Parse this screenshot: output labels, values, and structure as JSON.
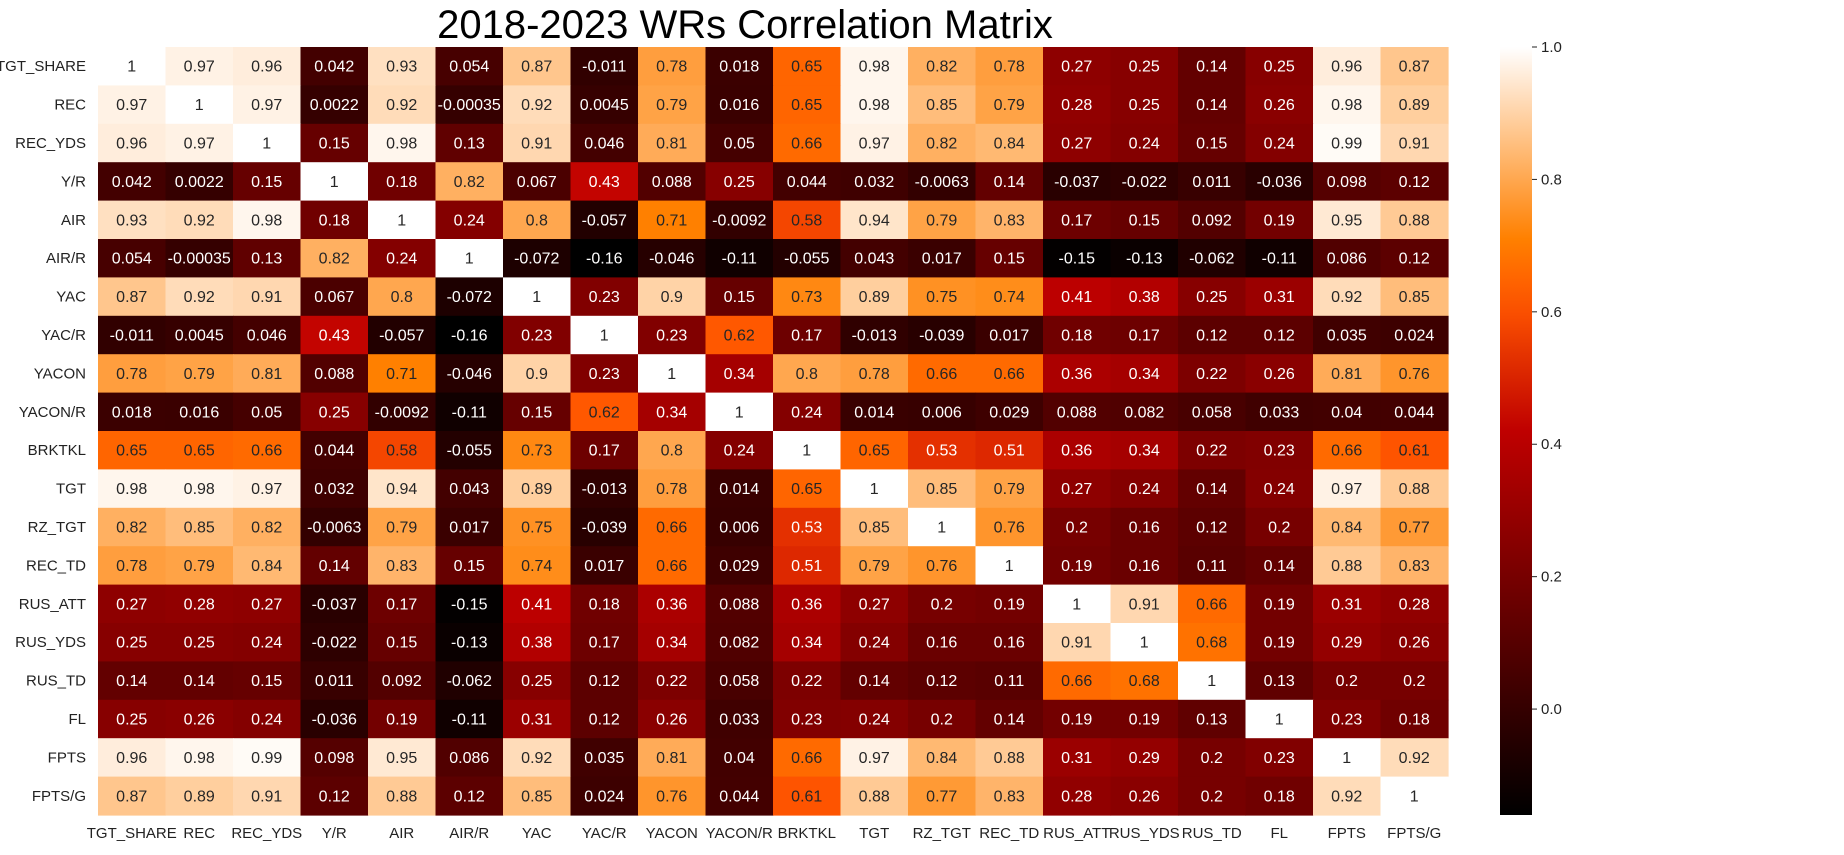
{
  "chart_data": {
    "type": "heatmap",
    "title": "2018-2023 WRs Correlation Matrix",
    "labels": [
      "TGT_SHARE",
      "REC",
      "REC_YDS",
      "Y/R",
      "AIR",
      "AIR/R",
      "YAC",
      "YAC/R",
      "YACON",
      "YACON/R",
      "BRKTKL",
      "TGT",
      "RZ_TGT",
      "REC_TD",
      "RUS_ATT",
      "RUS_YDS",
      "RUS_TD",
      "FL",
      "FPTS",
      "FPTS/G"
    ],
    "matrix": [
      [
        "1",
        "0.97",
        "0.96",
        "0.042",
        "0.93",
        "0.054",
        "0.87",
        "-0.011",
        "0.78",
        "0.018",
        "0.65",
        "0.98",
        "0.82",
        "0.78",
        "0.27",
        "0.25",
        "0.14",
        "0.25",
        "0.96",
        "0.87"
      ],
      [
        "0.97",
        "1",
        "0.97",
        "0.0022",
        "0.92",
        "-0.00035",
        "0.92",
        "0.0045",
        "0.79",
        "0.016",
        "0.65",
        "0.98",
        "0.85",
        "0.79",
        "0.28",
        "0.25",
        "0.14",
        "0.26",
        "0.98",
        "0.89"
      ],
      [
        "0.96",
        "0.97",
        "1",
        "0.15",
        "0.98",
        "0.13",
        "0.91",
        "0.046",
        "0.81",
        "0.05",
        "0.66",
        "0.97",
        "0.82",
        "0.84",
        "0.27",
        "0.24",
        "0.15",
        "0.24",
        "0.99",
        "0.91"
      ],
      [
        "0.042",
        "0.0022",
        "0.15",
        "1",
        "0.18",
        "0.82",
        "0.067",
        "0.43",
        "0.088",
        "0.25",
        "0.044",
        "0.032",
        "-0.0063",
        "0.14",
        "-0.037",
        "-0.022",
        "0.011",
        "-0.036",
        "0.098",
        "0.12"
      ],
      [
        "0.93",
        "0.92",
        "0.98",
        "0.18",
        "1",
        "0.24",
        "0.8",
        "-0.057",
        "0.71",
        "-0.0092",
        "0.58",
        "0.94",
        "0.79",
        "0.83",
        "0.17",
        "0.15",
        "0.092",
        "0.19",
        "0.95",
        "0.88"
      ],
      [
        "0.054",
        "-0.00035",
        "0.13",
        "0.82",
        "0.24",
        "1",
        "-0.072",
        "-0.16",
        "-0.046",
        "-0.11",
        "-0.055",
        "0.043",
        "0.017",
        "0.15",
        "-0.15",
        "-0.13",
        "-0.062",
        "-0.11",
        "0.086",
        "0.12"
      ],
      [
        "0.87",
        "0.92",
        "0.91",
        "0.067",
        "0.8",
        "-0.072",
        "1",
        "0.23",
        "0.9",
        "0.15",
        "0.73",
        "0.89",
        "0.75",
        "0.74",
        "0.41",
        "0.38",
        "0.25",
        "0.31",
        "0.92",
        "0.85"
      ],
      [
        "-0.011",
        "0.0045",
        "0.046",
        "0.43",
        "-0.057",
        "-0.16",
        "0.23",
        "1",
        "0.23",
        "0.62",
        "0.17",
        "-0.013",
        "-0.039",
        "0.017",
        "0.18",
        "0.17",
        "0.12",
        "0.12",
        "0.035",
        "0.024"
      ],
      [
        "0.78",
        "0.79",
        "0.81",
        "0.088",
        "0.71",
        "-0.046",
        "0.9",
        "0.23",
        "1",
        "0.34",
        "0.8",
        "0.78",
        "0.66",
        "0.66",
        "0.36",
        "0.34",
        "0.22",
        "0.26",
        "0.81",
        "0.76"
      ],
      [
        "0.018",
        "0.016",
        "0.05",
        "0.25",
        "-0.0092",
        "-0.11",
        "0.15",
        "0.62",
        "0.34",
        "1",
        "0.24",
        "0.014",
        "0.006",
        "0.029",
        "0.088",
        "0.082",
        "0.058",
        "0.033",
        "0.04",
        "0.044"
      ],
      [
        "0.65",
        "0.65",
        "0.66",
        "0.044",
        "0.58",
        "-0.055",
        "0.73",
        "0.17",
        "0.8",
        "0.24",
        "1",
        "0.65",
        "0.53",
        "0.51",
        "0.36",
        "0.34",
        "0.22",
        "0.23",
        "0.66",
        "0.61"
      ],
      [
        "0.98",
        "0.98",
        "0.97",
        "0.032",
        "0.94",
        "0.043",
        "0.89",
        "-0.013",
        "0.78",
        "0.014",
        "0.65",
        "1",
        "0.85",
        "0.79",
        "0.27",
        "0.24",
        "0.14",
        "0.24",
        "0.97",
        "0.88"
      ],
      [
        "0.82",
        "0.85",
        "0.82",
        "-0.0063",
        "0.79",
        "0.017",
        "0.75",
        "-0.039",
        "0.66",
        "0.006",
        "0.53",
        "0.85",
        "1",
        "0.76",
        "0.2",
        "0.16",
        "0.12",
        "0.2",
        "0.84",
        "0.77"
      ],
      [
        "0.78",
        "0.79",
        "0.84",
        "0.14",
        "0.83",
        "0.15",
        "0.74",
        "0.017",
        "0.66",
        "0.029",
        "0.51",
        "0.79",
        "0.76",
        "1",
        "0.19",
        "0.16",
        "0.11",
        "0.14",
        "0.88",
        "0.83"
      ],
      [
        "0.27",
        "0.28",
        "0.27",
        "-0.037",
        "0.17",
        "-0.15",
        "0.41",
        "0.18",
        "0.36",
        "0.088",
        "0.36",
        "0.27",
        "0.2",
        "0.19",
        "1",
        "0.91",
        "0.66",
        "0.19",
        "0.31",
        "0.28"
      ],
      [
        "0.25",
        "0.25",
        "0.24",
        "-0.022",
        "0.15",
        "-0.13",
        "0.38",
        "0.17",
        "0.34",
        "0.082",
        "0.34",
        "0.24",
        "0.16",
        "0.16",
        "0.91",
        "1",
        "0.68",
        "0.19",
        "0.29",
        "0.26"
      ],
      [
        "0.14",
        "0.14",
        "0.15",
        "0.011",
        "0.092",
        "-0.062",
        "0.25",
        "0.12",
        "0.22",
        "0.058",
        "0.22",
        "0.14",
        "0.12",
        "0.11",
        "0.66",
        "0.68",
        "1",
        "0.13",
        "0.2",
        "0.2"
      ],
      [
        "0.25",
        "0.26",
        "0.24",
        "-0.036",
        "0.19",
        "-0.11",
        "0.31",
        "0.12",
        "0.26",
        "0.033",
        "0.23",
        "0.24",
        "0.2",
        "0.14",
        "0.19",
        "0.19",
        "0.13",
        "1",
        "0.23",
        "0.18"
      ],
      [
        "0.96",
        "0.98",
        "0.99",
        "0.098",
        "0.95",
        "0.086",
        "0.92",
        "0.035",
        "0.81",
        "0.04",
        "0.66",
        "0.97",
        "0.84",
        "0.88",
        "0.31",
        "0.29",
        "0.2",
        "0.23",
        "1",
        "0.92"
      ],
      [
        "0.87",
        "0.89",
        "0.91",
        "0.12",
        "0.88",
        "0.12",
        "0.85",
        "0.024",
        "0.76",
        "0.044",
        "0.61",
        "0.88",
        "0.77",
        "0.83",
        "0.28",
        "0.26",
        "0.2",
        "0.18",
        "0.92",
        "1"
      ]
    ],
    "colorscale": "gist_heat",
    "color_range": [
      -0.16,
      1.0
    ],
    "colorbar_ticks": [
      "0.0",
      "0.2",
      "0.4",
      "0.6",
      "0.8",
      "1.0"
    ],
    "grid": false
  }
}
